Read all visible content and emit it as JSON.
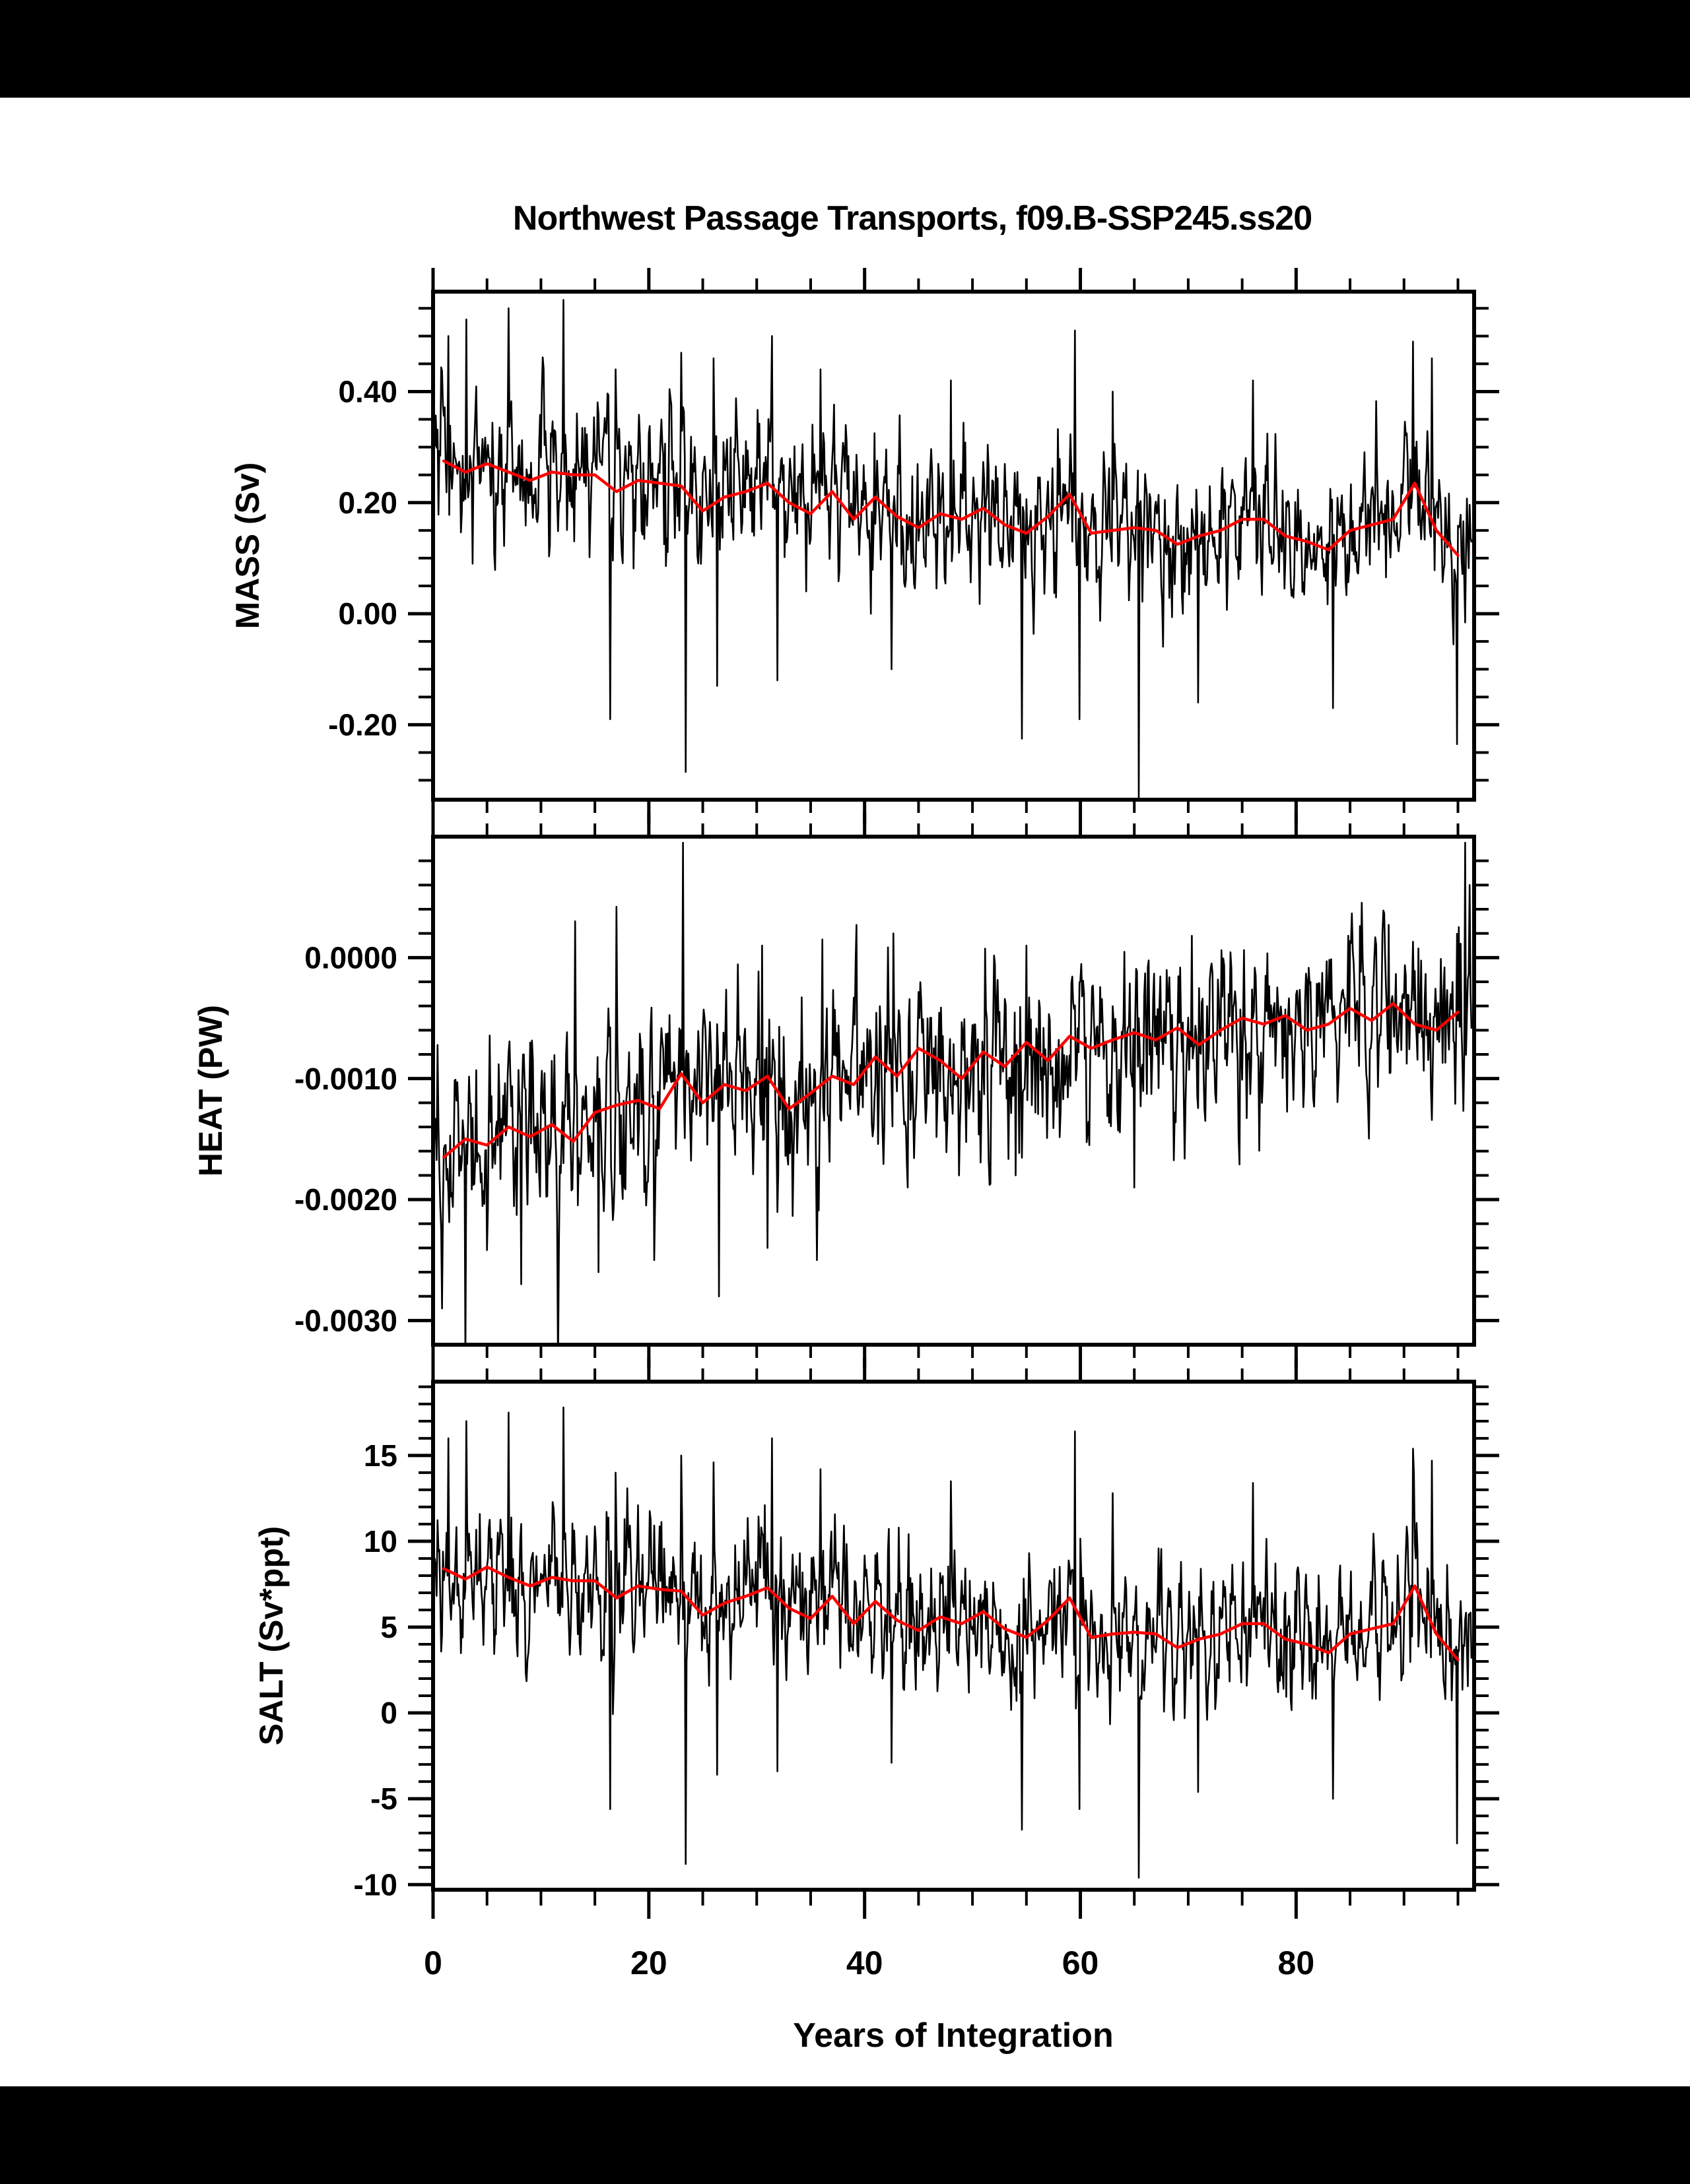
{
  "page": {
    "background_color": "#000000",
    "canvas_color": "#ffffff"
  },
  "chart_data": {
    "type": "line",
    "title": "Northwest Passage Transports, f09.B-SSP245.ss20",
    "xlabel": "Years of Integration",
    "legend": "none",
    "grid": false,
    "series_colors": {
      "monthly": "#000000",
      "annual_mean": "#ff0000"
    },
    "x_axis": {
      "min": 0,
      "max": 96.5,
      "major_ticks": [
        0,
        20,
        40,
        60,
        80
      ],
      "major_tick_labels": [
        "0",
        "20",
        "40",
        "60",
        "80"
      ],
      "minor_step": 5
    },
    "panels": [
      {
        "name": "MASS",
        "ylabel": "MASS (Sv)",
        "ylim": [
          -0.335,
          0.58
        ],
        "ytick_values": [
          0.4,
          0.2,
          0.0,
          -0.2
        ],
        "ytick_labels": [
          "0.40",
          "0.20",
          "0.00",
          "-0.20"
        ],
        "yminor_step": 0.05,
        "annual_mean": {
          "x": [
            1,
            3,
            5,
            7,
            9,
            11,
            13,
            15,
            17,
            19,
            21,
            23,
            25,
            27,
            29,
            31,
            33,
            35,
            37,
            39,
            41,
            43,
            45,
            47,
            49,
            51,
            53,
            55,
            57,
            59,
            61,
            63,
            65,
            67,
            69,
            71,
            73,
            75,
            77,
            79,
            81,
            83,
            85,
            87,
            89,
            91,
            93,
            95
          ],
          "y": [
            0.275,
            0.255,
            0.27,
            0.255,
            0.24,
            0.255,
            0.25,
            0.25,
            0.22,
            0.24,
            0.235,
            0.23,
            0.185,
            0.21,
            0.22,
            0.235,
            0.2,
            0.18,
            0.22,
            0.17,
            0.21,
            0.175,
            0.155,
            0.18,
            0.17,
            0.19,
            0.16,
            0.145,
            0.175,
            0.215,
            0.145,
            0.15,
            0.155,
            0.15,
            0.125,
            0.14,
            0.15,
            0.17,
            0.17,
            0.14,
            0.13,
            0.115,
            0.15,
            0.16,
            0.17,
            0.235,
            0.15,
            0.105
          ]
        },
        "monthly_noise": {
          "seed": 20117,
          "sigma": 0.055,
          "rho": 0.35,
          "seasonal_amp": 0.05
        },
        "spikes": [
          [
            1.4,
            0.5
          ],
          [
            3.1,
            0.53
          ],
          [
            7.0,
            0.55
          ],
          [
            12.1,
            0.565
          ],
          [
            16.9,
            0.44
          ],
          [
            23.0,
            0.47
          ],
          [
            26.0,
            0.46
          ],
          [
            31.4,
            0.5
          ],
          [
            35.9,
            0.44
          ],
          [
            48.0,
            0.42
          ],
          [
            59.5,
            0.51
          ],
          [
            63.0,
            0.4
          ],
          [
            76.0,
            0.42
          ],
          [
            90.8,
            0.49
          ],
          [
            92.6,
            0.46
          ],
          [
            16.4,
            -0.19
          ],
          [
            23.4,
            -0.285
          ],
          [
            26.3,
            -0.13
          ],
          [
            31.9,
            -0.12
          ],
          [
            42.5,
            -0.1
          ],
          [
            54.6,
            -0.225
          ],
          [
            59.9,
            -0.19
          ],
          [
            65.4,
            -0.335
          ],
          [
            70.9,
            -0.16
          ],
          [
            83.4,
            -0.17
          ],
          [
            94.9,
            -0.235
          ]
        ]
      },
      {
        "name": "HEAT",
        "ylabel": "HEAT (PW)",
        "ylim": [
          -0.0032,
          0.001
        ],
        "ytick_values": [
          0.0,
          -0.001,
          -0.002,
          -0.003
        ],
        "ytick_labels": [
          "0.0000",
          "-0.0010",
          "-0.0020",
          "-0.0030"
        ],
        "yminor_step": 0.0002,
        "annual_mean": {
          "x": [
            1,
            3,
            5,
            7,
            9,
            11,
            13,
            15,
            17,
            19,
            21,
            23,
            25,
            27,
            29,
            31,
            33,
            35,
            37,
            39,
            41,
            43,
            45,
            47,
            49,
            51,
            53,
            55,
            57,
            59,
            61,
            63,
            65,
            67,
            69,
            71,
            73,
            75,
            77,
            79,
            81,
            83,
            85,
            87,
            89,
            91,
            93,
            95
          ],
          "y": [
            -0.00165,
            -0.0015,
            -0.00155,
            -0.0014,
            -0.00148,
            -0.00138,
            -0.00152,
            -0.00128,
            -0.00122,
            -0.00118,
            -0.00125,
            -0.00096,
            -0.0012,
            -0.00105,
            -0.0011,
            -0.00098,
            -0.00125,
            -0.00112,
            -0.00098,
            -0.00105,
            -0.00082,
            -0.00098,
            -0.00075,
            -0.00085,
            -0.001,
            -0.00078,
            -0.0009,
            -0.0007,
            -0.00085,
            -0.00065,
            -0.00075,
            -0.00068,
            -0.00062,
            -0.00068,
            -0.00058,
            -0.00072,
            -0.0006,
            -0.0005,
            -0.00055,
            -0.00048,
            -0.0006,
            -0.00055,
            -0.00042,
            -0.00052,
            -0.00038,
            -0.00055,
            -0.0006,
            -0.00045
          ]
        },
        "monthly_noise": {
          "seed": 40223,
          "sigma": 0.00032,
          "rho": 0.35,
          "seasonal_amp": 0.00026
        },
        "spikes": [
          [
            13.2,
            0.0003
          ],
          [
            17.0,
            0.00042
          ],
          [
            23.2,
            0.00095
          ],
          [
            30.5,
            0.0001
          ],
          [
            36.1,
            0.00015
          ],
          [
            42.7,
            0.0002
          ],
          [
            55.0,
            0.0001
          ],
          [
            70.3,
            0.00018
          ],
          [
            88.0,
            0.0002
          ],
          [
            95.7,
            0.00095
          ],
          [
            96.1,
            0.0006
          ],
          [
            0.8,
            -0.0029
          ],
          [
            3.0,
            -0.00335
          ],
          [
            8.2,
            -0.0027
          ],
          [
            11.6,
            -0.0034
          ],
          [
            15.3,
            -0.0026
          ],
          [
            20.5,
            -0.0025
          ],
          [
            26.5,
            -0.0028
          ],
          [
            31.0,
            -0.0024
          ],
          [
            35.6,
            -0.0025
          ],
          [
            44.0,
            -0.0019
          ],
          [
            54.0,
            -0.0018
          ],
          [
            65.0,
            -0.0019
          ]
        ]
      },
      {
        "name": "SALT",
        "ylabel": "SALT (Sv*ppt)",
        "ylim": [
          -10.3,
          19.3
        ],
        "ytick_values": [
          15,
          10,
          5,
          0,
          -5,
          -10
        ],
        "ytick_labels": [
          "15",
          "10",
          "5",
          "0",
          "-5",
          "-10"
        ],
        "yminor_step": 1,
        "annual_mean": {
          "x": [
            1,
            3,
            5,
            7,
            9,
            11,
            13,
            15,
            17,
            19,
            21,
            23,
            25,
            27,
            29,
            31,
            33,
            35,
            37,
            39,
            41,
            43,
            45,
            47,
            49,
            51,
            53,
            55,
            57,
            59,
            61,
            63,
            65,
            67,
            69,
            71,
            73,
            75,
            77,
            79,
            81,
            83,
            85,
            87,
            89,
            91,
            93,
            95
          ],
          "y": [
            8.4,
            7.8,
            8.5,
            7.9,
            7.4,
            7.9,
            7.7,
            7.7,
            6.7,
            7.4,
            7.2,
            7.1,
            5.7,
            6.4,
            6.8,
            7.3,
            6.1,
            5.5,
            6.8,
            5.2,
            6.5,
            5.4,
            4.8,
            5.6,
            5.2,
            5.9,
            4.9,
            4.4,
            5.4,
            6.7,
            4.4,
            4.6,
            4.7,
            4.6,
            3.8,
            4.3,
            4.6,
            5.2,
            5.2,
            4.3,
            4.0,
            3.5,
            4.6,
            4.9,
            5.2,
            7.4,
            4.6,
            3.1
          ]
        },
        "monthly_noise": {
          "seed": 77391,
          "sigma": 1.7,
          "rho": 0.35,
          "seasonal_amp": 1.55
        },
        "spikes": [
          [
            1.4,
            16.0
          ],
          [
            3.1,
            17.0
          ],
          [
            7.0,
            17.5
          ],
          [
            12.1,
            17.8
          ],
          [
            16.9,
            14.0
          ],
          [
            23.0,
            15.0
          ],
          [
            26.0,
            14.6
          ],
          [
            31.4,
            16.0
          ],
          [
            35.9,
            14.2
          ],
          [
            48.0,
            13.5
          ],
          [
            59.5,
            16.4
          ],
          [
            63.0,
            12.8
          ],
          [
            76.0,
            13.4
          ],
          [
            90.8,
            15.4
          ],
          [
            92.6,
            14.7
          ],
          [
            16.4,
            -5.6
          ],
          [
            23.4,
            -8.8
          ],
          [
            26.3,
            -3.6
          ],
          [
            31.9,
            -3.4
          ],
          [
            42.5,
            -2.9
          ],
          [
            54.6,
            -6.8
          ],
          [
            59.9,
            -5.6
          ],
          [
            65.4,
            -9.6
          ],
          [
            70.9,
            -4.6
          ],
          [
            83.4,
            -5.0
          ],
          [
            94.9,
            -7.6
          ]
        ]
      }
    ]
  }
}
